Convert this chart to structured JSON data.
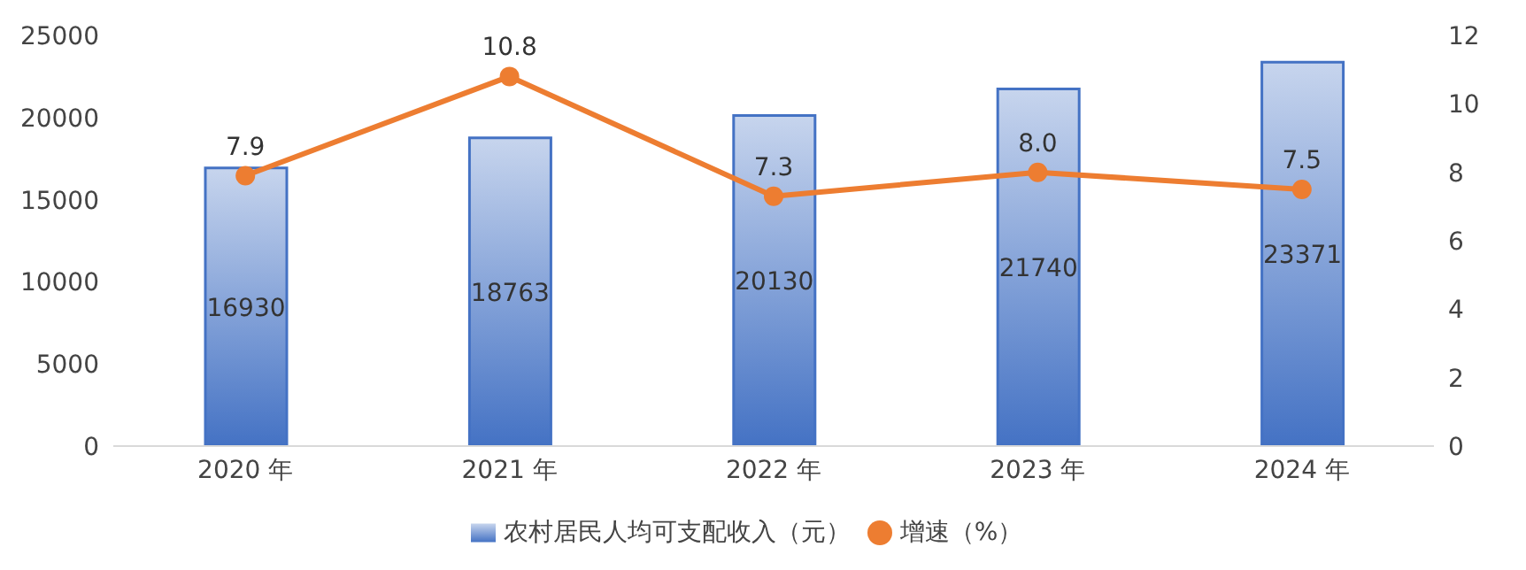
{
  "chart_data": {
    "type": "bar",
    "categories": [
      "2020 年",
      "2021 年",
      "2022 年",
      "2023 年",
      "2024 年"
    ],
    "series": [
      {
        "name": "农村居民人均可支配收入（元）",
        "color": "#4472c4",
        "values": [
          16930,
          18763,
          20130,
          21740,
          23371
        ]
      },
      {
        "name": "增速（%）",
        "type": "line",
        "axis": "y2",
        "color": "#ed7d31",
        "values": [
          7.9,
          10.8,
          7.3,
          8.0,
          7.5
        ],
        "value_labels": [
          "7.9",
          "10.8",
          "7.3",
          "8.0",
          "7.5"
        ]
      }
    ],
    "ylim": [
      0,
      25000
    ],
    "yticks": [
      0,
      5000,
      10000,
      15000,
      20000,
      25000
    ],
    "y2lim": [
      0,
      12
    ],
    "y2ticks": [
      0,
      2,
      4,
      6,
      8,
      10,
      12
    ],
    "data_labels": true,
    "legend": "bottom",
    "grid": false,
    "marker": "circle"
  }
}
